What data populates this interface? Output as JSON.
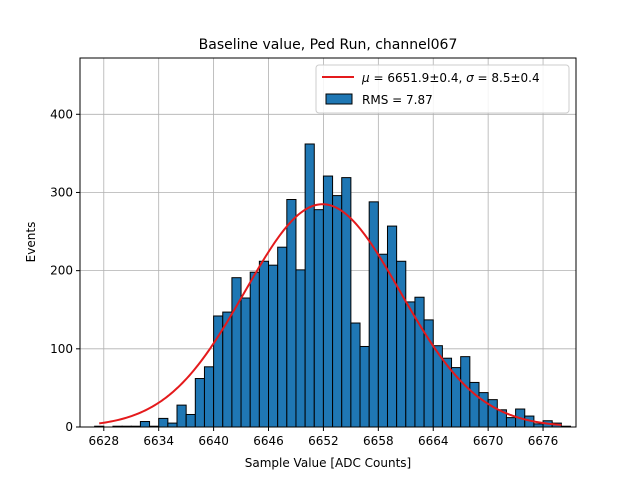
{
  "chart_data": {
    "type": "bar",
    "title": "Baseline value, Ped Run, channel067",
    "xlabel": "Sample Value [ADC Counts]",
    "ylabel": "Events",
    "xlim": [
      6625.4,
      6679.6
    ],
    "ylim": [
      0,
      472
    ],
    "xticks": [
      6628,
      6634,
      6640,
      6646,
      6652,
      6658,
      6664,
      6670,
      6676
    ],
    "yticks": [
      0,
      100,
      200,
      300,
      400
    ],
    "grid": true,
    "legend_position": "upper-right",
    "colors": {
      "bar": "#1f77b4",
      "fit": "#e41a1c"
    },
    "histogram": {
      "name": "RMS = 7.87",
      "bin_width": 1,
      "bin_start": 6627,
      "counts": [
        1,
        0,
        1,
        1,
        1,
        7,
        1,
        11,
        5,
        28,
        16,
        62,
        77,
        142,
        147,
        191,
        165,
        198,
        212,
        207,
        230,
        291,
        201,
        362,
        278,
        321,
        296,
        319,
        133,
        103,
        288,
        221,
        257,
        212,
        160,
        166,
        137,
        104,
        88,
        76,
        90,
        57,
        44,
        35,
        22,
        12,
        23,
        14,
        4,
        8,
        5,
        1
      ]
    },
    "fit": {
      "name": "",
      "mu_text": "6651.9±0.4",
      "sigma_text": "8.5±0.4",
      "mu": 6651.9,
      "sigma": 8.5,
      "amplitude": 285,
      "x_range": [
        6627.5,
        6678
      ]
    }
  }
}
